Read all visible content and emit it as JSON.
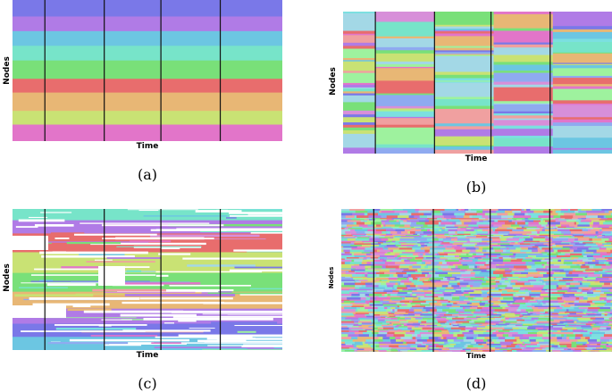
{
  "palette": [
    "#7a78e8",
    "#b07be6",
    "#6cc6e2",
    "#77e4c9",
    "#79e079",
    "#e86d6d",
    "#e8b775",
    "#c9e274",
    "#e275c9",
    "#7be0e0",
    "#a3d8e6",
    "#f0a0a0",
    "#d78fd9",
    "#9ef29e",
    "#8faaf0"
  ],
  "panels": [
    {
      "id": "a",
      "caption": "(a)",
      "xlabel": "Time",
      "ylabel": "Nodes",
      "bands": [
        {
          "color": "#7a78e8",
          "weight": 18
        },
        {
          "color": "#b07be6",
          "weight": 16
        },
        {
          "color": "#6cc6e2",
          "weight": 16
        },
        {
          "color": "#77e4c9",
          "weight": 16
        },
        {
          "color": "#79e079",
          "weight": 20
        },
        {
          "color": "#e86d6d",
          "weight": 15
        },
        {
          "color": "#e8b775",
          "weight": 20
        },
        {
          "color": "#c9e274",
          "weight": 15
        },
        {
          "color": "#e275c9",
          "weight": 18
        }
      ]
    },
    {
      "id": "b",
      "caption": "(b)",
      "xlabel": "Time",
      "ylabel": "Nodes"
    },
    {
      "id": "c",
      "caption": "(c)",
      "xlabel": "Time",
      "ylabel": "Nodes",
      "bands": [
        {
          "color": "#77e4c9",
          "weight": 12
        },
        {
          "color": "#b07be6",
          "weight": 14
        },
        {
          "color": "#e86d6d",
          "weight": 20
        },
        {
          "color": "#c9e274",
          "weight": 22
        },
        {
          "color": "#79e079",
          "weight": 20
        },
        {
          "color": "#e8b775",
          "weight": 18
        },
        {
          "color": "#b07be6",
          "weight": 16
        },
        {
          "color": "#7a78e8",
          "weight": 14
        },
        {
          "color": "#6cc6e2",
          "weight": 14
        }
      ]
    },
    {
      "id": "d",
      "caption": "(d)",
      "xlabel": "Time",
      "ylabel": "Nodes"
    }
  ]
}
